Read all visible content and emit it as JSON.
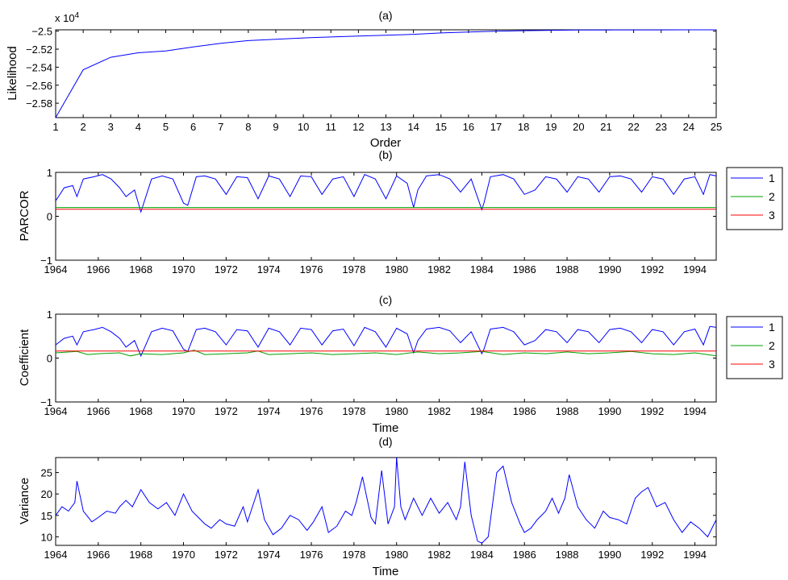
{
  "figure": {
    "background": "#ffffff",
    "line_colors": {
      "series1": "#0000ff",
      "series2": "#00a000",
      "series3": "#ff0000"
    }
  },
  "chart_data": [
    {
      "id": "a",
      "type": "line",
      "title": "(a)",
      "xlabel": "Order",
      "ylabel": "Likelihood",
      "exponent_label": "x 10",
      "exponent_power": "4",
      "xlim": [
        1,
        25
      ],
      "ylim": [
        -2.596,
        -2.4985
      ],
      "xticks": [
        "1",
        "2",
        "3",
        "4",
        "5",
        "6",
        "7",
        "8",
        "9",
        "10",
        "11",
        "12",
        "13",
        "14",
        "15",
        "16",
        "17",
        "18",
        "19",
        "20",
        "21",
        "22",
        "23",
        "24",
        "25"
      ],
      "yticks": [
        {
          "value": -2.58,
          "label": "−2.58"
        },
        {
          "value": -2.56,
          "label": "−2.56"
        },
        {
          "value": -2.54,
          "label": "−2.54"
        },
        {
          "value": -2.52,
          "label": "−2.52"
        },
        {
          "value": -2.5,
          "label": "−2.5"
        }
      ],
      "series": [
        {
          "name": "likelihood",
          "color": "#0000ff",
          "x": [
            1,
            2,
            3,
            4,
            5,
            6,
            7,
            8,
            9,
            10,
            11,
            12,
            13,
            14,
            15,
            16,
            17,
            18,
            19,
            20,
            21,
            22,
            23,
            24,
            25
          ],
          "values": [
            -2.596,
            -2.543,
            -2.529,
            -2.524,
            -2.522,
            -2.5175,
            -2.5135,
            -2.5105,
            -2.509,
            -2.5075,
            -2.5065,
            -2.5055,
            -2.5045,
            -2.5035,
            -2.502,
            -2.501,
            -2.5,
            -2.4995,
            -2.499,
            -2.4988,
            -2.4987,
            -2.4986,
            -2.4986,
            -2.4985,
            -2.4985
          ]
        }
      ]
    },
    {
      "id": "b",
      "type": "line",
      "title": "(b)",
      "xlabel": "",
      "ylabel": "PARCOR",
      "xlim": [
        1964,
        1995
      ],
      "ylim": [
        -1,
        1
      ],
      "xticks": [
        "1964",
        "1966",
        "1968",
        "1970",
        "1972",
        "1974",
        "1976",
        "1978",
        "1980",
        "1982",
        "1984",
        "1986",
        "1988",
        "1990",
        "1992",
        "1994"
      ],
      "yticks": [
        {
          "value": -1,
          "label": "−1"
        },
        {
          "value": 0,
          "label": "0"
        },
        {
          "value": 1,
          "label": "1"
        }
      ],
      "legend": {
        "placement": "outside-right",
        "entries": [
          "1",
          "2",
          "3"
        ]
      },
      "series": [
        {
          "name": "1",
          "color": "#0000ff",
          "x": [
            1964,
            1964.4,
            1964.8,
            1965,
            1965.3,
            1965.8,
            1966.2,
            1966.6,
            1967,
            1967.3,
            1967.7,
            1968,
            1968.5,
            1969,
            1969.5,
            1970,
            1970.2,
            1970.6,
            1971,
            1971.5,
            1972,
            1972.5,
            1973,
            1973.5,
            1974,
            1974.5,
            1975,
            1975.5,
            1976,
            1976.5,
            1977,
            1977.5,
            1978,
            1978.5,
            1979,
            1979.5,
            1980,
            1980.5,
            1980.8,
            1981,
            1981.4,
            1982,
            1982.5,
            1983,
            1983.5,
            1984,
            1984.1,
            1984.4,
            1985,
            1985.5,
            1986,
            1986.5,
            1987,
            1987.5,
            1988,
            1988.5,
            1989,
            1989.5,
            1990,
            1990.5,
            1991,
            1991.5,
            1992,
            1992.5,
            1993,
            1993.5,
            1994,
            1994.4,
            1994.7,
            1995
          ],
          "values": [
            0.35,
            0.65,
            0.7,
            0.45,
            0.85,
            0.9,
            0.95,
            0.85,
            0.65,
            0.45,
            0.6,
            0.1,
            0.85,
            0.92,
            0.85,
            0.3,
            0.25,
            0.9,
            0.92,
            0.85,
            0.5,
            0.9,
            0.88,
            0.4,
            0.92,
            0.85,
            0.45,
            0.92,
            0.9,
            0.5,
            0.85,
            0.9,
            0.45,
            0.95,
            0.85,
            0.4,
            0.92,
            0.75,
            0.2,
            0.6,
            0.92,
            0.95,
            0.85,
            0.55,
            0.85,
            0.15,
            0.3,
            0.9,
            0.95,
            0.85,
            0.5,
            0.6,
            0.9,
            0.85,
            0.55,
            0.9,
            0.85,
            0.55,
            0.9,
            0.92,
            0.85,
            0.55,
            0.9,
            0.85,
            0.5,
            0.85,
            0.9,
            0.5,
            0.95,
            0.92
          ]
        },
        {
          "name": "2",
          "color": "#00a000",
          "x": [
            1964,
            1995
          ],
          "values": [
            0.2,
            0.2
          ]
        },
        {
          "name": "3",
          "color": "#ff0000",
          "x": [
            1964,
            1995
          ],
          "values": [
            0.16,
            0.16
          ]
        }
      ]
    },
    {
      "id": "c",
      "type": "line",
      "title": "(c)",
      "xlabel": "Time",
      "ylabel": "Coefficient",
      "xlim": [
        1964,
        1995
      ],
      "ylim": [
        -1,
        1
      ],
      "xticks": [
        "1964",
        "1966",
        "1968",
        "1970",
        "1972",
        "1974",
        "1976",
        "1978",
        "1980",
        "1982",
        "1984",
        "1986",
        "1988",
        "1990",
        "1992",
        "1994"
      ],
      "yticks": [
        {
          "value": -1,
          "label": "−1"
        },
        {
          "value": 0,
          "label": "0"
        },
        {
          "value": 1,
          "label": "1"
        }
      ],
      "legend": {
        "placement": "outside-right",
        "entries": [
          "1",
          "2",
          "3"
        ]
      },
      "series": [
        {
          "name": "1",
          "color": "#0000ff",
          "x": [
            1964,
            1964.4,
            1964.8,
            1965,
            1965.3,
            1965.8,
            1966.2,
            1966.6,
            1967,
            1967.3,
            1967.7,
            1968,
            1968.5,
            1969,
            1969.5,
            1970,
            1970.2,
            1970.6,
            1971,
            1971.5,
            1972,
            1972.5,
            1973,
            1973.5,
            1974,
            1974.5,
            1975,
            1975.5,
            1976,
            1976.5,
            1977,
            1977.5,
            1978,
            1978.5,
            1979,
            1979.5,
            1980,
            1980.5,
            1980.8,
            1981,
            1981.4,
            1982,
            1982.5,
            1983,
            1983.5,
            1984,
            1984.1,
            1984.4,
            1985,
            1985.5,
            1986,
            1986.5,
            1987,
            1987.5,
            1988,
            1988.5,
            1989,
            1989.5,
            1990,
            1990.5,
            1991,
            1991.5,
            1992,
            1992.5,
            1993,
            1993.5,
            1994,
            1994.4,
            1994.7,
            1995
          ],
          "values": [
            0.3,
            0.45,
            0.5,
            0.3,
            0.6,
            0.65,
            0.7,
            0.6,
            0.45,
            0.25,
            0.4,
            0.05,
            0.6,
            0.68,
            0.62,
            0.2,
            0.15,
            0.65,
            0.68,
            0.6,
            0.3,
            0.65,
            0.62,
            0.25,
            0.68,
            0.6,
            0.3,
            0.68,
            0.65,
            0.3,
            0.62,
            0.66,
            0.28,
            0.7,
            0.6,
            0.25,
            0.68,
            0.55,
            0.12,
            0.4,
            0.66,
            0.7,
            0.62,
            0.35,
            0.6,
            0.1,
            0.2,
            0.66,
            0.7,
            0.6,
            0.3,
            0.4,
            0.65,
            0.6,
            0.35,
            0.65,
            0.6,
            0.35,
            0.65,
            0.68,
            0.6,
            0.35,
            0.65,
            0.6,
            0.3,
            0.6,
            0.66,
            0.3,
            0.72,
            0.7
          ]
        },
        {
          "name": "2",
          "color": "#00a000",
          "x": [
            1964,
            1965,
            1965.5,
            1966,
            1967,
            1967.5,
            1968,
            1969,
            1970,
            1970.5,
            1971,
            1972,
            1973,
            1973.5,
            1974,
            1975,
            1976,
            1977,
            1978,
            1979,
            1980,
            1981,
            1982,
            1983,
            1984,
            1985,
            1986,
            1987,
            1988,
            1989,
            1990,
            1991,
            1992,
            1993,
            1994,
            1995
          ],
          "values": [
            0.12,
            0.15,
            0.08,
            0.1,
            0.12,
            0.05,
            0.1,
            0.08,
            0.12,
            0.18,
            0.08,
            0.1,
            0.12,
            0.16,
            0.08,
            0.1,
            0.12,
            0.08,
            0.1,
            0.12,
            0.08,
            0.14,
            0.1,
            0.12,
            0.15,
            0.08,
            0.12,
            0.1,
            0.14,
            0.1,
            0.12,
            0.15,
            0.1,
            0.08,
            0.12,
            0.05
          ]
        },
        {
          "name": "3",
          "color": "#ff0000",
          "x": [
            1964,
            1995
          ],
          "values": [
            0.16,
            0.16
          ]
        }
      ]
    },
    {
      "id": "d",
      "type": "line",
      "title": "(d)",
      "xlabel": "Time",
      "ylabel": "Variance",
      "xlim": [
        1964,
        1995
      ],
      "ylim": [
        8,
        28.5
      ],
      "xticks": [
        "1964",
        "1966",
        "1968",
        "1970",
        "1972",
        "1974",
        "1976",
        "1978",
        "1980",
        "1982",
        "1984",
        "1986",
        "1988",
        "1990",
        "1992",
        "1994"
      ],
      "yticks": [
        {
          "value": 10,
          "label": "10"
        },
        {
          "value": 15,
          "label": "15"
        },
        {
          "value": 20,
          "label": "20"
        },
        {
          "value": 25,
          "label": "25"
        }
      ],
      "series": [
        {
          "name": "variance",
          "color": "#0000ff",
          "x": [
            1964,
            1964.3,
            1964.6,
            1964.9,
            1965,
            1965.3,
            1965.7,
            1966,
            1966.4,
            1966.8,
            1967,
            1967.3,
            1967.6,
            1968,
            1968.4,
            1968.8,
            1969.2,
            1969.6,
            1970,
            1970.4,
            1970.8,
            1971,
            1971.3,
            1971.7,
            1972,
            1972.4,
            1972.8,
            1973,
            1973.5,
            1973.8,
            1974.2,
            1974.6,
            1975,
            1975.4,
            1975.8,
            1976.1,
            1976.5,
            1976.8,
            1977.2,
            1977.6,
            1977.9,
            1978.1,
            1978.4,
            1978.8,
            1979,
            1979.3,
            1979.6,
            1979.9,
            1980,
            1980.2,
            1980.4,
            1980.8,
            1981.2,
            1981.6,
            1982,
            1982.4,
            1982.8,
            1983,
            1983.2,
            1983.5,
            1983.8,
            1984,
            1984.3,
            1984.7,
            1985,
            1985.4,
            1985.8,
            1986,
            1986.3,
            1986.6,
            1987,
            1987.3,
            1987.6,
            1987.9,
            1988.1,
            1988.5,
            1988.9,
            1989.3,
            1989.7,
            1990,
            1990.4,
            1990.8,
            1991.2,
            1991.5,
            1991.8,
            1992.2,
            1992.6,
            1993,
            1993.4,
            1993.8,
            1994.2,
            1994.6,
            1995
          ],
          "values": [
            15,
            17,
            16,
            18,
            23,
            16,
            13.5,
            14.5,
            16,
            15.5,
            17,
            18.5,
            17,
            21,
            18,
            16.5,
            18,
            15,
            20,
            16,
            14,
            13,
            12,
            14,
            13,
            12.5,
            17,
            13.5,
            21,
            14,
            10.5,
            12,
            15,
            14,
            11.5,
            13.5,
            17,
            11,
            12.5,
            16,
            15,
            18,
            24,
            14.5,
            13,
            25.5,
            13,
            17,
            28.5,
            17,
            14,
            19,
            15,
            19,
            15.5,
            18,
            14,
            17,
            27.5,
            15,
            9,
            8.5,
            10,
            25,
            26.5,
            18,
            13,
            11,
            12,
            14,
            16,
            19,
            15.5,
            19,
            24.5,
            17,
            14,
            12,
            16,
            14.5,
            14,
            13,
            19,
            20.5,
            21.5,
            17,
            18,
            14,
            11,
            13.5,
            12,
            10,
            14
          ]
        }
      ]
    }
  ]
}
